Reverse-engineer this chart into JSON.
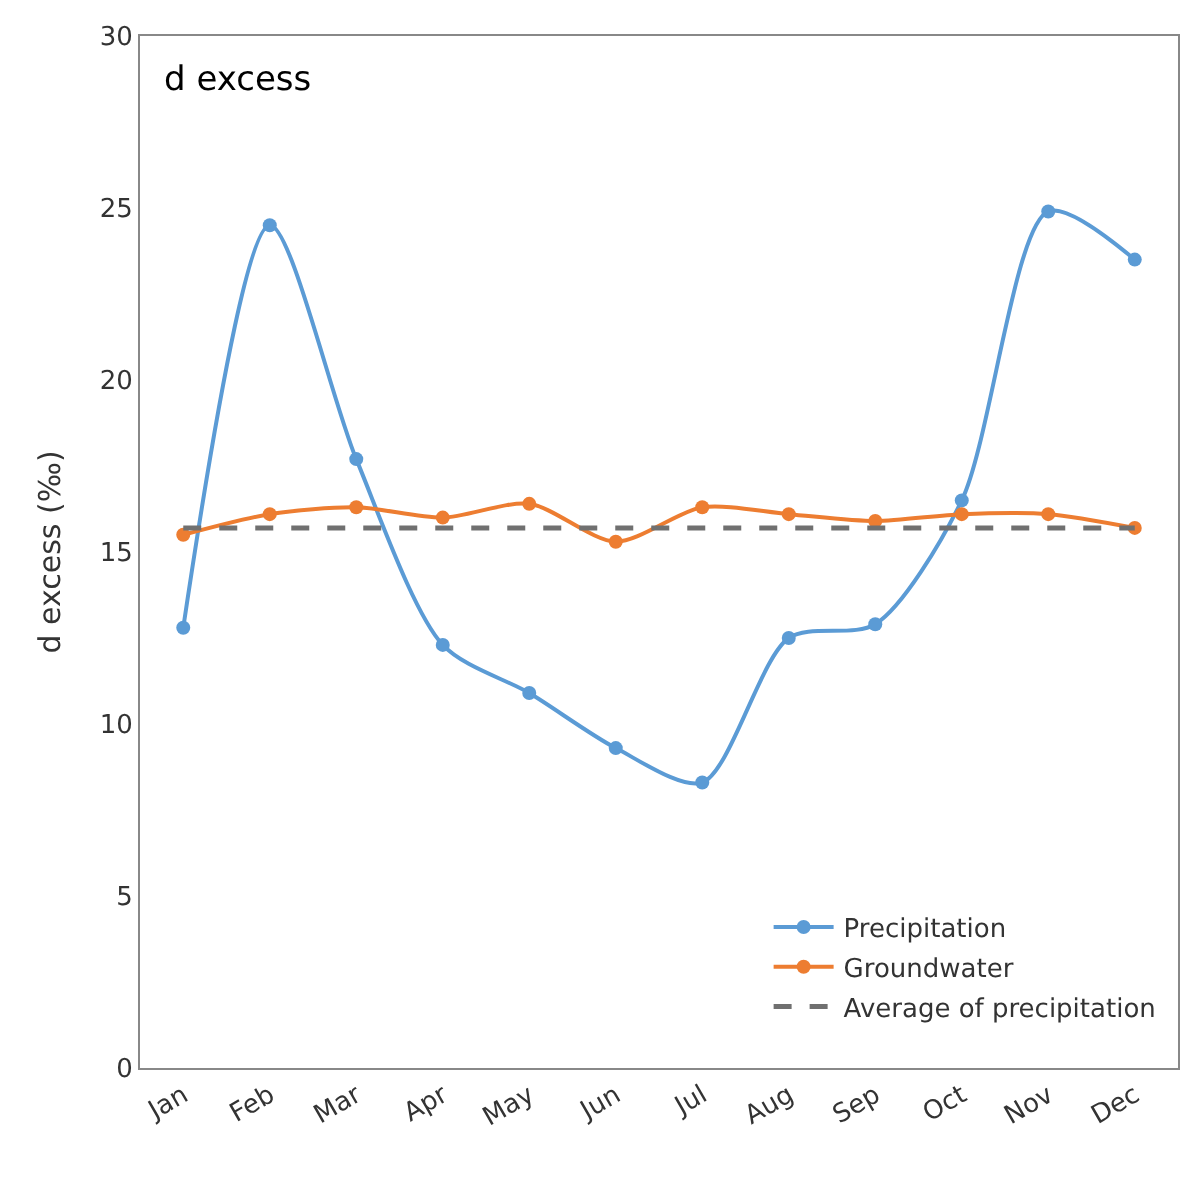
{
  "chart_data": {
    "type": "line",
    "title": "d excess",
    "ylabel": "d excess (‰)",
    "categories": [
      "Jan",
      "Feb",
      "Mar",
      "Apr",
      "May",
      "Jun",
      "Jul",
      "Aug",
      "Sep",
      "Oct",
      "Nov",
      "Dec"
    ],
    "series": [
      {
        "name": "Precipitation",
        "color": "#5b9bd5",
        "values": [
          12.8,
          24.5,
          17.7,
          12.3,
          10.9,
          9.3,
          8.3,
          12.5,
          12.9,
          16.5,
          24.9,
          23.5
        ]
      },
      {
        "name": "Groundwater",
        "color": "#ed7d31",
        "values": [
          15.5,
          16.1,
          16.3,
          16.0,
          16.4,
          15.3,
          16.3,
          16.1,
          15.9,
          16.1,
          16.1,
          15.7
        ]
      }
    ],
    "ref_lines": [
      {
        "axis": "y",
        "value": 15.7,
        "label": "Average of precipitation",
        "color": "#707070",
        "line_style": "dashed"
      }
    ],
    "ylim": [
      0,
      30
    ],
    "yticks": [
      0,
      5,
      10,
      15,
      20,
      25,
      30
    ],
    "legend": "bottom right",
    "marker": "circle",
    "line_style": "solid"
  }
}
